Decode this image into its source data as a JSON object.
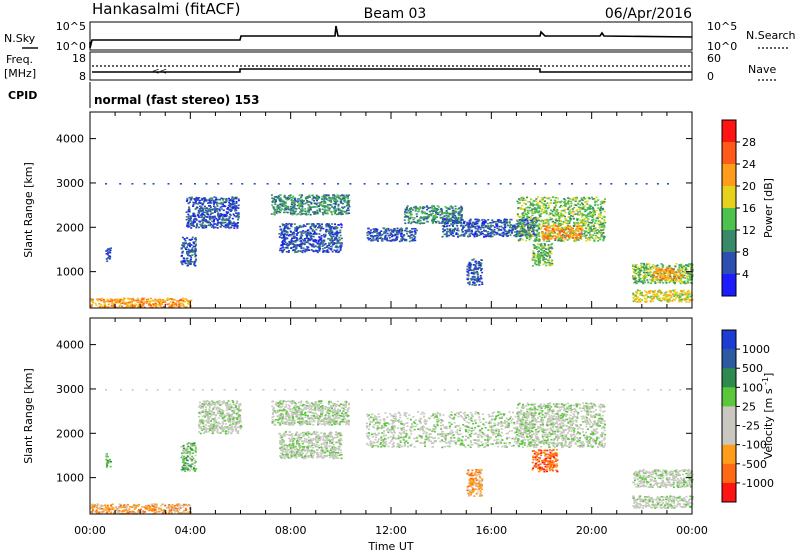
{
  "header": {
    "station": "Hankasalmi (fitACF)",
    "beam": "Beam 03",
    "date": "06/Apr/2016"
  },
  "strips": {
    "nsky": {
      "left_label": "N.Sky",
      "left_ticks": [
        "10^5",
        "10^0"
      ],
      "right_ticks": [
        "10^5",
        "10^0"
      ],
      "right_label": "N.Search"
    },
    "freq": {
      "left_label": "Freq.",
      "left_unit": "[MHz]",
      "left_ticks": [
        "18",
        "8"
      ],
      "right_ticks": [
        "60",
        "0"
      ],
      "right_label": "Nave"
    },
    "cpid": {
      "label": "CPID",
      "mode": "normal (fast stereo) 153"
    }
  },
  "chart_data": [
    {
      "type": "heatmap",
      "name_label": "Power [dB]",
      "ylabel": "Slant Range [km]",
      "ylim": [
        180,
        4600
      ],
      "yticks": [
        1000,
        2000,
        3000,
        4000
      ],
      "xlim": [
        0,
        24
      ],
      "colorbar": {
        "ticks": [
          "4",
          "8",
          "12",
          "16",
          "20",
          "24",
          "28"
        ],
        "colors": [
          "#1c1cff",
          "#2c4fb0",
          "#3a8a6a",
          "#4ec24e",
          "#e6d21c",
          "#ff9d1a",
          "#ff5a1a",
          "#ff1414"
        ]
      },
      "regions": [
        {
          "x0": 0.0,
          "x1": 4.0,
          "y0": 200,
          "y1": 420,
          "level": 5
        },
        {
          "x0": 0.6,
          "x1": 0.8,
          "y0": 1250,
          "y1": 1550,
          "level": 1
        },
        {
          "x0": 3.8,
          "x1": 5.9,
          "y0": 2000,
          "y1": 2700,
          "level": 1
        },
        {
          "x0": 3.6,
          "x1": 4.2,
          "y0": 1150,
          "y1": 1800,
          "level": 1
        },
        {
          "x0": 7.2,
          "x1": 10.3,
          "y0": 2300,
          "y1": 2750,
          "level": 2
        },
        {
          "x0": 7.5,
          "x1": 10.0,
          "y0": 1450,
          "y1": 2100,
          "level": 1
        },
        {
          "x0": 11.0,
          "x1": 13.0,
          "y0": 1700,
          "y1": 2000,
          "level": 1
        },
        {
          "x0": 12.5,
          "x1": 14.8,
          "y0": 2100,
          "y1": 2500,
          "level": 2
        },
        {
          "x0": 14.0,
          "x1": 17.8,
          "y0": 1800,
          "y1": 2200,
          "level": 1
        },
        {
          "x0": 15.0,
          "x1": 15.6,
          "y0": 700,
          "y1": 1300,
          "level": 1
        },
        {
          "x0": 17.0,
          "x1": 20.5,
          "y0": 1700,
          "y1": 2700,
          "level": 3
        },
        {
          "x0": 18.0,
          "x1": 19.6,
          "y0": 1750,
          "y1": 2050,
          "level": 5
        },
        {
          "x0": 17.6,
          "x1": 18.4,
          "y0": 1150,
          "y1": 1650,
          "level": 3
        },
        {
          "x0": 21.6,
          "x1": 24.0,
          "y0": 750,
          "y1": 1200,
          "level": 3
        },
        {
          "x0": 22.4,
          "x1": 23.6,
          "y0": 850,
          "y1": 1100,
          "level": 5
        },
        {
          "x0": 21.6,
          "x1": 24.0,
          "y0": 330,
          "y1": 600,
          "level": 4
        }
      ]
    },
    {
      "type": "heatmap",
      "name_label": "Velocity",
      "unit_label": "[m s",
      "unit_sup": "-1",
      "unit_close": "]",
      "ylabel": "Slant Range [km]",
      "ylim": [
        180,
        4600
      ],
      "yticks": [
        1000,
        2000,
        3000,
        4000
      ],
      "xlim": [
        0,
        24
      ],
      "xticks": [
        "00:00",
        "04:00",
        "08:00",
        "12:00",
        "16:00",
        "20:00",
        "00:00"
      ],
      "xlabel": "Time UT",
      "colorbar": {
        "ticks": [
          "1000",
          "500",
          "100",
          "25",
          "-25",
          "-100",
          "-500",
          "-1000"
        ],
        "colors": [
          "#1c3cd2",
          "#2c5aa0",
          "#2e8a4e",
          "#5ac83a",
          "#c8c8c0",
          "#c8c8c0",
          "#ff9d1a",
          "#ff6a14",
          "#ff1414"
        ]
      },
      "regions": [
        {
          "x0": 0.0,
          "x1": 4.0,
          "y0": 200,
          "y1": 420,
          "level": 6
        },
        {
          "x0": 0.6,
          "x1": 0.8,
          "y0": 1250,
          "y1": 1550,
          "level": 3
        },
        {
          "x0": 3.6,
          "x1": 4.2,
          "y0": 1150,
          "y1": 1800,
          "level": 3
        },
        {
          "x0": 4.3,
          "x1": 6.0,
          "y0": 2000,
          "y1": 2750,
          "level": 4
        },
        {
          "x0": 7.2,
          "x1": 10.3,
          "y0": 2200,
          "y1": 2750,
          "level": 4
        },
        {
          "x0": 7.5,
          "x1": 10.0,
          "y0": 1450,
          "y1": 2050,
          "level": 4
        },
        {
          "x0": 11.0,
          "x1": 17.8,
          "y0": 1700,
          "y1": 2500,
          "level": 4
        },
        {
          "x0": 15.0,
          "x1": 15.6,
          "y0": 600,
          "y1": 1200,
          "level": 6
        },
        {
          "x0": 17.0,
          "x1": 20.5,
          "y0": 1700,
          "y1": 2700,
          "level": 4
        },
        {
          "x0": 17.6,
          "x1": 18.6,
          "y0": 1150,
          "y1": 1650,
          "level": 7
        },
        {
          "x0": 21.6,
          "x1": 24.0,
          "y0": 800,
          "y1": 1200,
          "level": 4
        },
        {
          "x0": 21.6,
          "x1": 24.0,
          "y0": 330,
          "y1": 600,
          "level": 4
        }
      ]
    }
  ]
}
